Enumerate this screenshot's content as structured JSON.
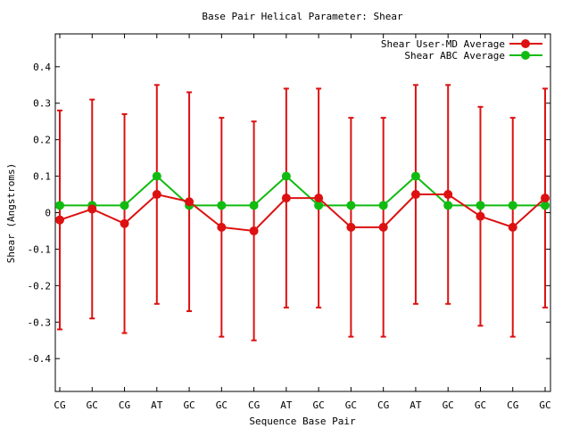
{
  "chart_data": {
    "type": "line",
    "title": "Base Pair Helical Parameter: Shear",
    "xlabel": "Sequence Base Pair",
    "ylabel": "Shear (Angstroms)",
    "ylim": [
      -0.49,
      0.49
    ],
    "yticks": [
      -0.4,
      -0.3,
      -0.2,
      -0.1,
      0,
      0.1,
      0.2,
      0.3,
      0.4
    ],
    "ytick_labels": [
      "-0.4",
      "-0.3",
      "-0.2",
      "-0.1",
      "0",
      "0.1",
      "0.2",
      "0.3",
      "0.4"
    ],
    "categories": [
      "CG",
      "GC",
      "CG",
      "AT",
      "GC",
      "GC",
      "CG",
      "AT",
      "GC",
      "GC",
      "CG",
      "AT",
      "GC",
      "GC",
      "CG",
      "GC"
    ],
    "grid": false,
    "legend_position": "top-right",
    "series": [
      {
        "name": "Shear User-MD Average",
        "color": "#dd1111",
        "values": [
          -0.02,
          0.01,
          -0.03,
          0.05,
          0.03,
          -0.04,
          -0.05,
          0.04,
          0.04,
          -0.04,
          -0.04,
          0.05,
          0.05,
          -0.01,
          -0.04,
          0.04
        ],
        "err_low": [
          -0.32,
          -0.29,
          -0.33,
          -0.25,
          -0.27,
          -0.34,
          -0.35,
          -0.26,
          -0.26,
          -0.34,
          -0.34,
          -0.25,
          -0.25,
          -0.31,
          -0.34,
          -0.26
        ],
        "err_high": [
          0.28,
          0.31,
          0.27,
          0.35,
          0.33,
          0.26,
          0.25,
          0.34,
          0.34,
          0.26,
          0.26,
          0.35,
          0.35,
          0.29,
          0.26,
          0.34
        ]
      },
      {
        "name": "Shear ABC Average",
        "color": "#11bb11",
        "values": [
          0.02,
          0.02,
          0.02,
          0.1,
          0.02,
          0.02,
          0.02,
          0.1,
          0.02,
          0.02,
          0.02,
          0.1,
          0.02,
          0.02,
          0.02,
          0.02
        ]
      }
    ]
  }
}
